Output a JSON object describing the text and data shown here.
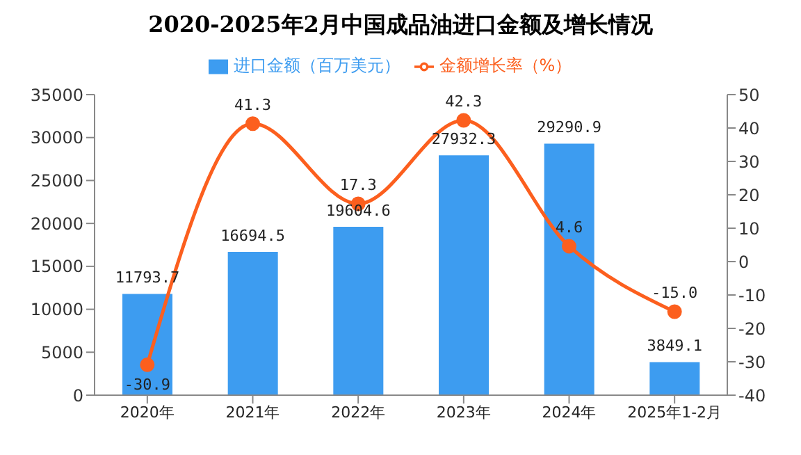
{
  "chart_data": {
    "type": "bar",
    "title": "2020-2025年2月中国成品油进口金额及增长情况",
    "categories": [
      "2020年",
      "2021年",
      "2022年",
      "2023年",
      "2024年",
      "2025年1-2月"
    ],
    "series": [
      {
        "name": "进口金额（百万美元）",
        "color": "#3d9cf0",
        "values": [
          11793.7,
          16694.5,
          19604.6,
          27932.3,
          29290.9,
          3849.1
        ]
      },
      {
        "name": "金额增长率（%）",
        "type": "line",
        "axis": "y2",
        "color": "#fc5f1e",
        "values": [
          -30.9,
          41.3,
          17.3,
          42.3,
          4.6,
          -15.0
        ],
        "value_labels": [
          "-30.9",
          "41.3",
          "17.3",
          "42.3",
          "4.6",
          "-15.0"
        ]
      }
    ],
    "ylim": [
      0,
      35000
    ],
    "yticks": [
      0,
      5000,
      10000,
      15000,
      20000,
      25000,
      30000,
      35000
    ],
    "y2lim": [
      -40,
      50
    ],
    "y2ticks": [
      -40,
      -30,
      -20,
      -10,
      0,
      10,
      20,
      30,
      40,
      50
    ],
    "data_labels": true,
    "grid": false,
    "legend": "top",
    "marker": "circle"
  }
}
